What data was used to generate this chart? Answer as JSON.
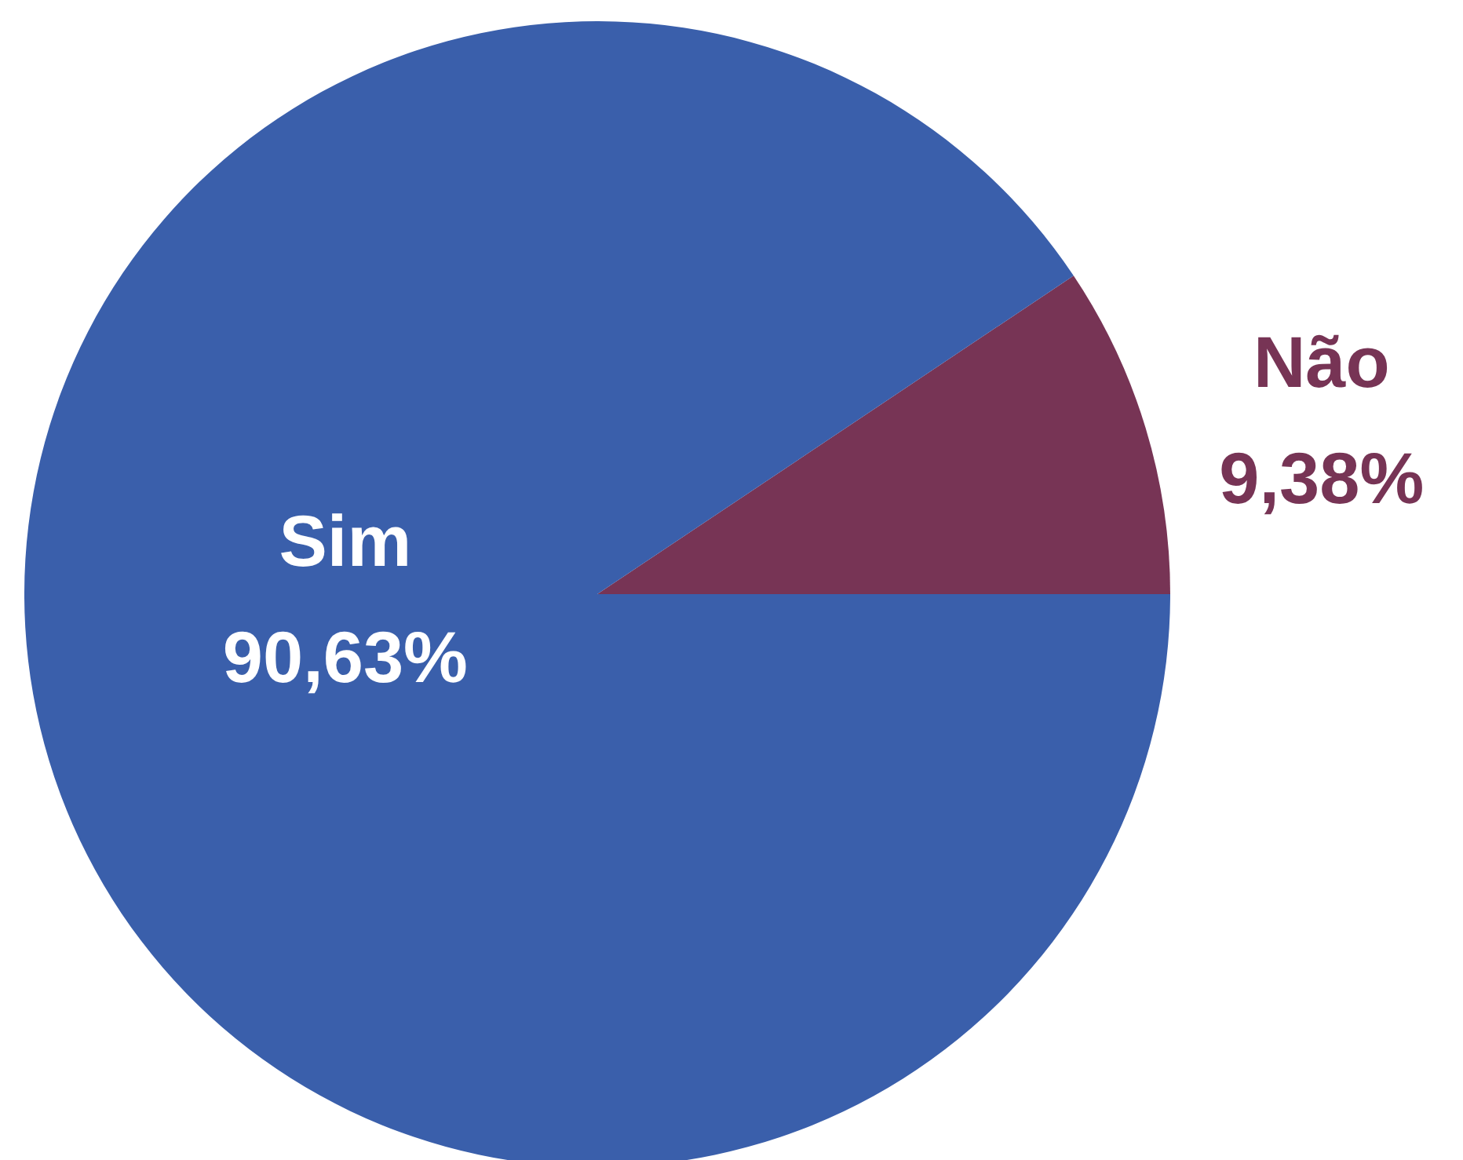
{
  "chart_data": {
    "type": "pie",
    "categories": [
      "Não",
      "Sim"
    ],
    "values": [
      9.38,
      90.63
    ],
    "value_labels": [
      "9,38%",
      "90,63%"
    ],
    "colors": [
      "#773455",
      "#3a5fab"
    ]
  }
}
